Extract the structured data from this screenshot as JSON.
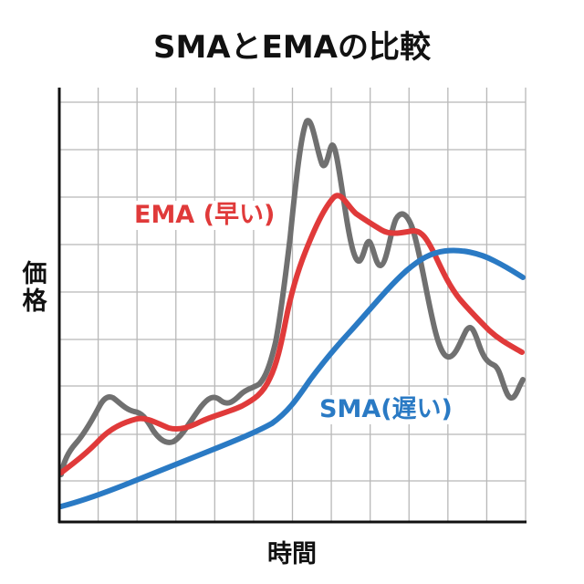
{
  "title": "SMAとEMAの比較",
  "chart_data": {
    "type": "line",
    "title": "SMAとEMAの比較",
    "xlabel": "時間",
    "ylabel": "価格",
    "grid": true,
    "axis_ticks": "none",
    "note": "Values in relative units (0-100) estimated from pixel positions; x from 0 to 12 grid columns.",
    "x": [
      0,
      0.5,
      1,
      1.5,
      2,
      2.5,
      3,
      3.5,
      4,
      4.5,
      5,
      5.5,
      6,
      6.5,
      7,
      7.5,
      8,
      8.5,
      9,
      9.5,
      10,
      10.5,
      11,
      11.5,
      12
    ],
    "series": [
      {
        "name": "価格",
        "color": "#707070",
        "values": [
          11,
          17,
          25,
          26,
          24,
          18,
          19,
          27,
          29,
          34,
          50,
          90,
          81,
          58,
          58,
          66,
          58,
          40,
          34,
          39,
          35,
          28,
          24,
          27,
          33
        ]
      },
      {
        "name": "EMA (早い)",
        "color": "#e03a3a",
        "values": [
          11,
          15,
          20,
          23,
          24,
          22,
          21,
          23,
          25,
          28,
          33,
          62,
          74,
          66,
          63,
          61,
          60,
          56,
          49,
          45,
          41,
          39,
          36,
          34,
          33
        ]
      },
      {
        "name": "SMA(遅い)",
        "color": "#2a7ac4",
        "values": [
          3,
          5,
          7,
          9,
          12,
          14,
          17,
          19,
          22,
          25,
          29,
          37,
          42,
          47,
          51,
          55,
          58,
          61,
          63,
          64,
          63,
          62,
          60,
          58,
          55
        ]
      }
    ],
    "annotations": [
      {
        "text": "EMA (早い)",
        "color": "#e03a3a"
      },
      {
        "text": "SMA(遅い)",
        "color": "#2a7ac4"
      }
    ]
  },
  "labels": {
    "ema": "EMA (早い)",
    "sma": "SMA(遅い)",
    "y_axis": "価格",
    "x_axis": "時間"
  },
  "colors": {
    "price": "#707070",
    "ema": "#e03a3a",
    "sma": "#2a7ac4",
    "grid": "#b8b8b8",
    "axis": "#111111"
  }
}
